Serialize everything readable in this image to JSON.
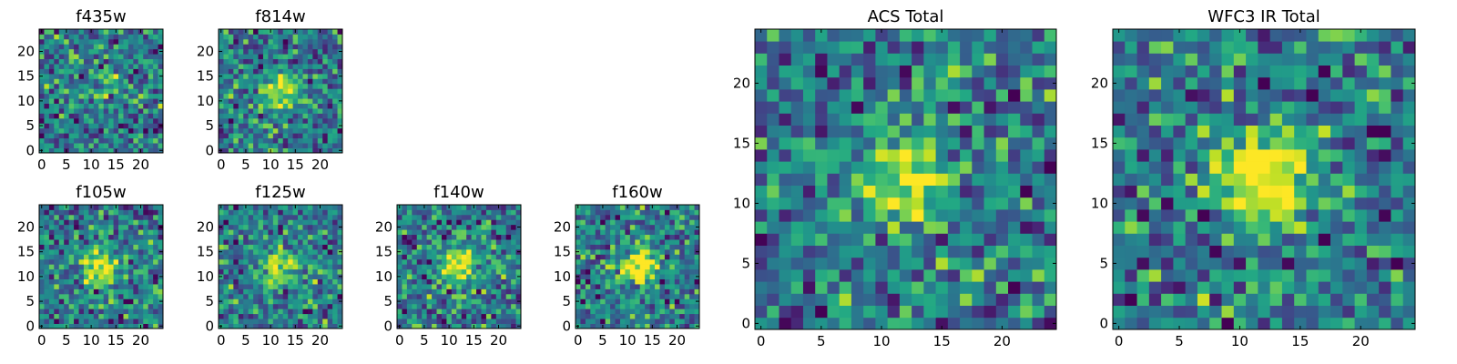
{
  "chart_data": [
    {
      "type": "heatmap",
      "title": "f435w",
      "grid_size": [
        25,
        25
      ],
      "xlim": [
        0,
        25
      ],
      "ylim": [
        0,
        25
      ],
      "xticks": [
        0,
        5,
        10,
        15,
        20
      ],
      "yticks": [
        0,
        5,
        10,
        15,
        20
      ],
      "seed": 11,
      "peak": 0.2
    },
    {
      "type": "heatmap",
      "title": "f814w",
      "grid_size": [
        25,
        25
      ],
      "xlim": [
        0,
        25
      ],
      "ylim": [
        0,
        25
      ],
      "xticks": [
        0,
        5,
        10,
        15,
        20
      ],
      "yticks": [
        0,
        5,
        10,
        15,
        20
      ],
      "seed": 23,
      "peak": 0.45
    },
    {
      "type": "heatmap",
      "title": "f105w",
      "grid_size": [
        25,
        25
      ],
      "xlim": [
        0,
        25
      ],
      "ylim": [
        0,
        25
      ],
      "xticks": [
        0,
        5,
        10,
        15,
        20
      ],
      "yticks": [
        0,
        5,
        10,
        15,
        20
      ],
      "seed": 37,
      "peak": 0.5
    },
    {
      "type": "heatmap",
      "title": "f125w",
      "grid_size": [
        25,
        25
      ],
      "xlim": [
        0,
        25
      ],
      "ylim": [
        0,
        25
      ],
      "xticks": [
        0,
        5,
        10,
        15,
        20
      ],
      "yticks": [
        0,
        5,
        10,
        15,
        20
      ],
      "seed": 41,
      "peak": 0.45
    },
    {
      "type": "heatmap",
      "title": "f140w",
      "grid_size": [
        25,
        25
      ],
      "xlim": [
        0,
        25
      ],
      "ylim": [
        0,
        25
      ],
      "xticks": [
        0,
        5,
        10,
        15,
        20
      ],
      "yticks": [
        0,
        5,
        10,
        15,
        20
      ],
      "seed": 53,
      "peak": 0.5
    },
    {
      "type": "heatmap",
      "title": "f160w",
      "grid_size": [
        25,
        25
      ],
      "xlim": [
        0,
        25
      ],
      "ylim": [
        0,
        25
      ],
      "xticks": [
        0,
        5,
        10,
        15,
        20
      ],
      "yticks": [
        0,
        5,
        10,
        15,
        20
      ],
      "seed": 67,
      "peak": 0.6
    },
    {
      "type": "heatmap",
      "title": "ACS Total",
      "grid_size": [
        25,
        25
      ],
      "xlim": [
        0,
        25
      ],
      "ylim": [
        0,
        25
      ],
      "xticks": [
        0,
        5,
        10,
        15,
        20
      ],
      "yticks": [
        0,
        5,
        10,
        15,
        20
      ],
      "seed": 79,
      "peak": 0.45
    },
    {
      "type": "heatmap",
      "title": "WFC3 IR Total",
      "grid_size": [
        25,
        25
      ],
      "xlim": [
        0,
        25
      ],
      "ylim": [
        0,
        25
      ],
      "xticks": [
        0,
        5,
        10,
        15,
        20
      ],
      "yticks": [
        0,
        5,
        10,
        15,
        20
      ],
      "seed": 97,
      "peak": 0.7
    }
  ],
  "colormap": "viridis"
}
